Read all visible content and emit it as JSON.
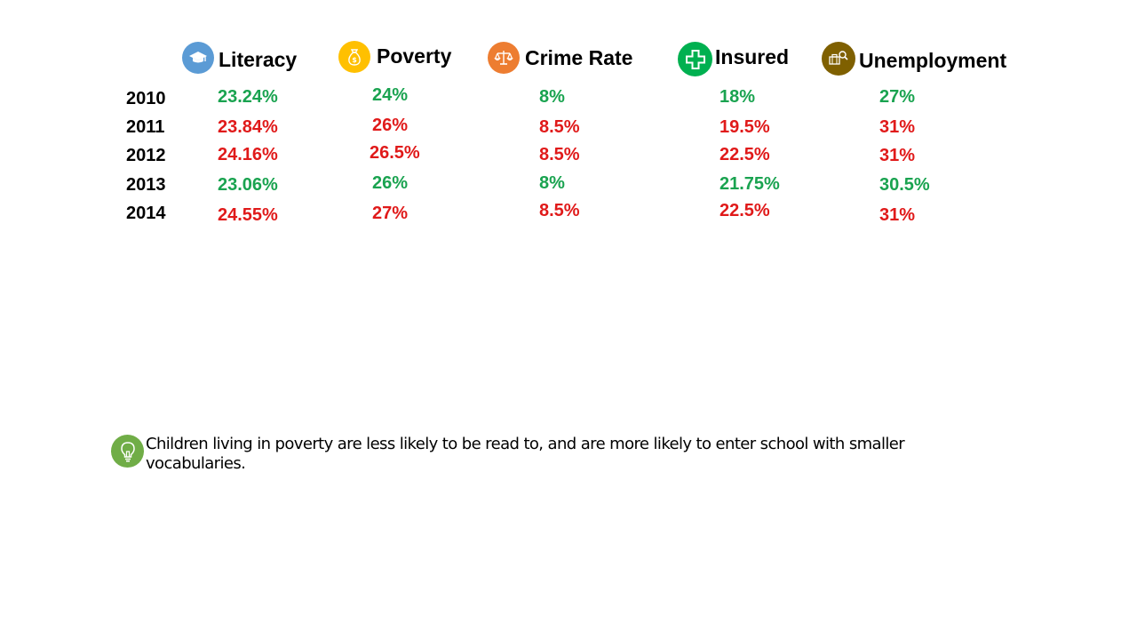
{
  "colors": {
    "good": "#1aa350",
    "bad": "#e01a1a"
  },
  "metrics": [
    {
      "key": "literacy",
      "label": "Literacy",
      "icon": "graduation-cap-icon",
      "icon_color": "#5b9bd5"
    },
    {
      "key": "poverty",
      "label": "Poverty",
      "icon": "money-bag-icon",
      "icon_color": "#ffc000"
    },
    {
      "key": "crime",
      "label": "Crime Rate",
      "icon": "scales-icon",
      "icon_color": "#ed7d31"
    },
    {
      "key": "insured",
      "label": "Insured",
      "icon": "medical-cross-icon",
      "icon_color": "#00b050"
    },
    {
      "key": "unemployment",
      "label": "Unemployment",
      "icon": "briefcase-search-icon",
      "icon_color": "#7f6000"
    }
  ],
  "rows": [
    {
      "year": "2010",
      "cells": [
        {
          "v": "23.24%",
          "s": "good"
        },
        {
          "v": "24%",
          "s": "good"
        },
        {
          "v": "8%",
          "s": "good"
        },
        {
          "v": "18%",
          "s": "good"
        },
        {
          "v": "27%",
          "s": "good"
        }
      ]
    },
    {
      "year": "2011",
      "cells": [
        {
          "v": "23.84%",
          "s": "bad"
        },
        {
          "v": "26%",
          "s": "bad"
        },
        {
          "v": "8.5%",
          "s": "bad"
        },
        {
          "v": "19.5%",
          "s": "bad"
        },
        {
          "v": "31%",
          "s": "bad"
        }
      ]
    },
    {
      "year": "2012",
      "cells": [
        {
          "v": "24.16%",
          "s": "bad"
        },
        {
          "v": "26.5%",
          "s": "bad"
        },
        {
          "v": "8.5%",
          "s": "bad"
        },
        {
          "v": "22.5%",
          "s": "bad"
        },
        {
          "v": "31%",
          "s": "bad"
        }
      ]
    },
    {
      "year": "2013",
      "cells": [
        {
          "v": "23.06%",
          "s": "good"
        },
        {
          "v": "26%",
          "s": "good"
        },
        {
          "v": "8%",
          "s": "good"
        },
        {
          "v": "21.75%",
          "s": "good"
        },
        {
          "v": "30.5%",
          "s": "good"
        }
      ]
    },
    {
      "year": "2014",
      "cells": [
        {
          "v": "24.55%",
          "s": "bad"
        },
        {
          "v": "27%",
          "s": "bad"
        },
        {
          "v": "8.5%",
          "s": "bad"
        },
        {
          "v": "22.5%",
          "s": "bad"
        },
        {
          "v": "31%",
          "s": "bad"
        }
      ]
    }
  ],
  "note": {
    "icon": "lightbulb-icon",
    "icon_color": "#70ad47",
    "text": "Children living in poverty are less likely to be read to, and are more likely to enter school with smaller vocabularies."
  }
}
